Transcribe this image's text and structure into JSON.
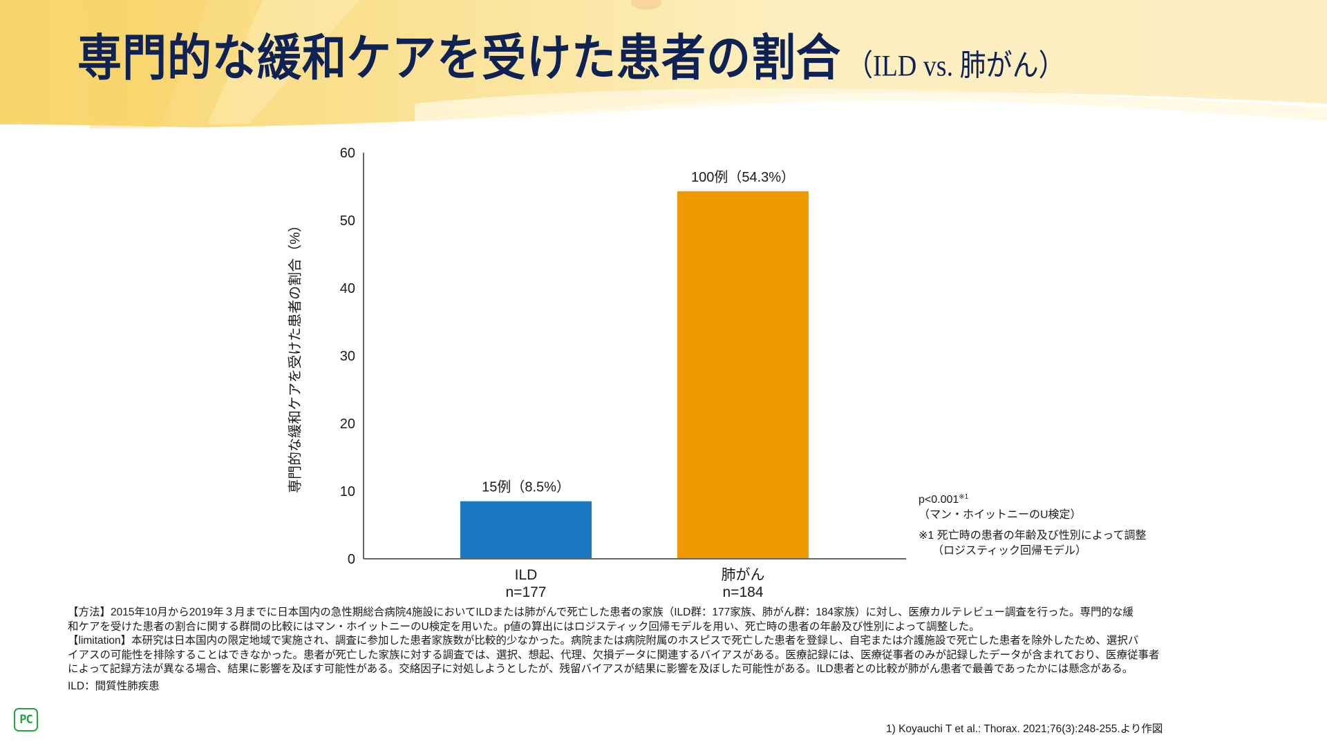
{
  "header": {
    "title_main": "専門的な緩和ケアを受けた患者の割合",
    "title_sub": "（ILD vs. 肺がん）"
  },
  "colors": {
    "title": "#0f2256",
    "bar_ild": "#1a78c2",
    "bar_lung_cancer": "#f09a00",
    "axis": "#666666",
    "logo": "#1ea83c",
    "banner": "#fbe3a0"
  },
  "chart_data": {
    "type": "bar",
    "title": "専門的な緩和ケアを受けた患者の割合（ILD vs. 肺がん）",
    "xlabel": "",
    "ylabel": "専門的な緩和ケアを受けた患者の割合（%）",
    "ylim": [
      0,
      60
    ],
    "yticks": [
      0,
      10,
      20,
      30,
      40,
      50,
      60
    ],
    "grid": false,
    "legend": "none",
    "categories": [
      "ILD",
      "肺がん"
    ],
    "category_n": [
      "n=177",
      "n=184"
    ],
    "values": [
      8.5,
      54.3
    ],
    "counts": [
      15,
      100
    ],
    "data_labels": [
      "15例（8.5%）",
      "100例（54.3%）"
    ],
    "bar_colors": [
      "#1a78c2",
      "#f09a00"
    ]
  },
  "stats": {
    "p_value": "p<0.001",
    "p_note_mark": "※1",
    "test_name": "（マン・ホイットニーのU検定）",
    "footnote_line1": "※1 死亡時の患者の年齢及び性別によって調整",
    "footnote_line2": "（ロジスティック回帰モデル）"
  },
  "methods": {
    "lines": [
      "【方法】2015年10月から2019年３月までに日本国内の急性期総合病院4施設においてILDまたは肺がんで死亡した患者の家族（ILD群：177家族、肺がん群：184家族）に対し、医療カルテレビュー調査を行った。専門的な緩",
      "和ケアを受けた患者の割合に関する群間の比較にはマン・ホイットニーのU検定を用いた。p値の算出にはロジスティック回帰モデルを用い、死亡時の患者の年齢及び性別によって調整した。",
      "【limitation】本研究は日本国内の限定地域で実施され、調査に参加した患者家族数が比較的少なかった。病院または病院附属のホスピスで死亡した患者を登録し、自宅または介護施設で死亡した患者を除外したため、選択バ",
      "イアスの可能性を排除することはできなかった。患者が死亡した家族に対する調査では、選択、想起、代理、欠損データに関連するバイアスがある。医療記録には、医療従事者のみが記録したデータが含まれており、医療従事者",
      "によって記録方法が異なる場合、結果に影響を及ぼす可能性がある。交絡因子に対処しようとしたが、残留バイアスが結果に影響を及ぼした可能性がある。ILD患者との比較が肺がん患者で最善であったかには懸念がある。"
    ],
    "abbreviation": "ILD：間質性肺疾患"
  },
  "logo": {
    "text": "PC",
    "icon": "pc-logo-icon"
  },
  "citation": "1) Koyauchi T et al.: Thorax. 2021;76(3):248-255.より作図"
}
